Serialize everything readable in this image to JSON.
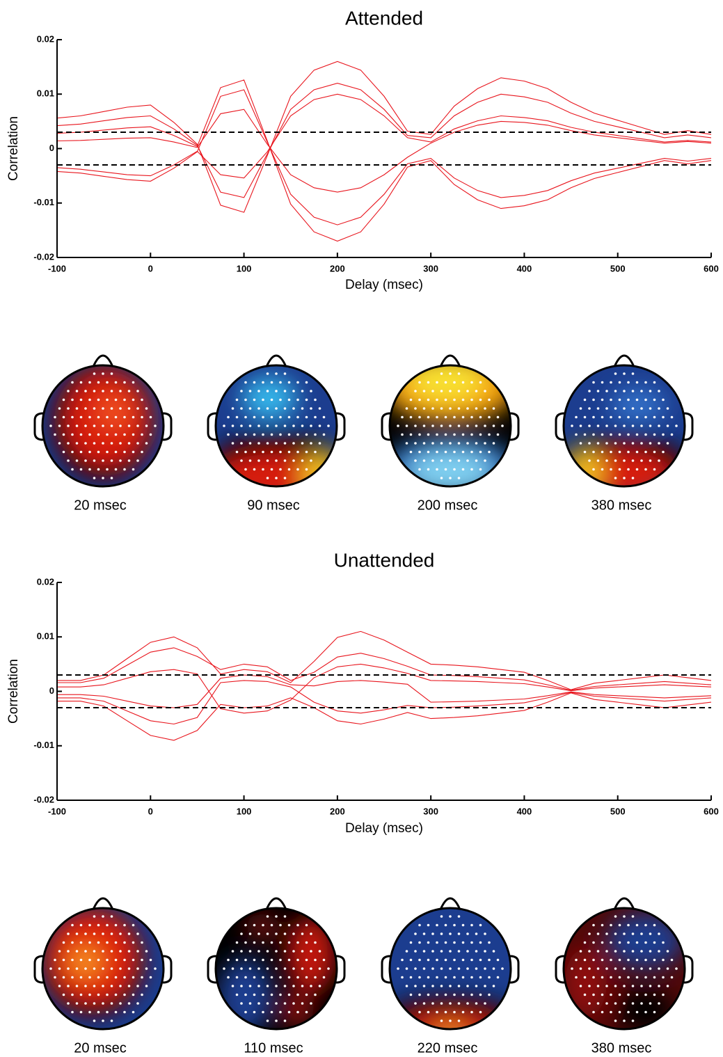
{
  "chart_data": [
    {
      "type": "line",
      "title": "Attended",
      "xlabel": "Delay (msec)",
      "ylabel": "Correlation",
      "color": "#e8141c",
      "x": [
        -100,
        -75,
        -50,
        -25,
        0,
        25,
        50,
        75,
        100,
        125,
        150,
        175,
        200,
        225,
        250,
        275,
        300,
        325,
        350,
        375,
        400,
        425,
        450,
        475,
        500,
        525,
        550,
        575,
        600
      ],
      "series": [
        {
          "values": [
            0.0056,
            0.006,
            0.0068,
            0.0076,
            0.008,
            0.0048,
            0.0008,
            -0.0104,
            -0.0117,
            -0.0013,
            0.0096,
            0.0144,
            0.016,
            0.0144,
            0.0096,
            0.0032,
            0.0026,
            0.0078,
            0.011,
            0.013,
            0.0124,
            0.011,
            0.0085,
            0.0065,
            0.0052,
            0.0039,
            0.0026,
            0.0033,
            0.0026
          ]
        },
        {
          "values": [
            0.0042,
            0.0045,
            0.0051,
            0.0057,
            0.006,
            0.0036,
            0.0006,
            -0.008,
            -0.009,
            -0.001,
            0.0072,
            0.0108,
            0.012,
            0.0108,
            0.0072,
            0.0024,
            0.002,
            0.006,
            0.0085,
            0.01,
            0.0095,
            0.0085,
            0.0065,
            0.005,
            0.004,
            0.003,
            0.002,
            0.0025,
            0.002
          ]
        },
        {
          "values": [
            0.0028,
            0.003,
            0.0034,
            0.0038,
            0.004,
            0.0024,
            0.0004,
            0.0112,
            0.0126,
            0.0014,
            -0.0102,
            -0.0153,
            -0.017,
            -0.0153,
            -0.0102,
            -0.0034,
            -0.0022,
            -0.0066,
            -0.0094,
            -0.011,
            -0.0105,
            -0.0094,
            -0.0072,
            -0.0055,
            -0.0044,
            -0.0033,
            -0.0022,
            -0.0028,
            -0.0022
          ]
        },
        {
          "values": [
            -0.0042,
            -0.0045,
            -0.0051,
            -0.0057,
            -0.006,
            -0.0036,
            -0.0006,
            0.0096,
            0.0108,
            0.0012,
            -0.0084,
            -0.0126,
            -0.014,
            -0.0126,
            -0.0084,
            -0.0028,
            -0.0018,
            -0.0054,
            -0.0077,
            -0.009,
            -0.0086,
            -0.0077,
            -0.0059,
            -0.0045,
            -0.0036,
            -0.0027,
            -0.0018,
            -0.0023,
            -0.0018
          ]
        },
        {
          "values": [
            -0.0035,
            -0.0038,
            -0.0043,
            -0.0048,
            -0.005,
            -0.003,
            -0.0005,
            -0.0048,
            -0.0054,
            -0.0006,
            0.006,
            0.009,
            0.01,
            0.009,
            0.006,
            0.002,
            0.0012,
            0.0036,
            0.0051,
            0.006,
            0.0057,
            0.0051,
            0.0039,
            0.003,
            0.0024,
            0.0018,
            0.0012,
            0.0015,
            0.0012
          ]
        },
        {
          "values": [
            0.0014,
            0.0015,
            0.0017,
            0.0019,
            0.002,
            0.0012,
            0.0002,
            0.0064,
            0.0072,
            0.0008,
            -0.0048,
            -0.0072,
            -0.008,
            -0.0072,
            -0.0048,
            -0.0016,
            0.001,
            0.003,
            0.0043,
            0.005,
            0.0048,
            0.0043,
            0.0033,
            0.0025,
            0.002,
            0.0015,
            0.001,
            0.0013,
            0.001
          ]
        }
      ],
      "hlines": [
        0.003,
        -0.003
      ],
      "xlim": [
        -100,
        600
      ],
      "xticks": [
        -100,
        0,
        100,
        200,
        300,
        400,
        500,
        600
      ],
      "ylim": [
        -0.02,
        0.02
      ],
      "yticks": [
        -0.02,
        -0.01,
        0,
        0.01,
        0.02
      ],
      "maps": [
        "20 msec",
        "90 msec",
        "200 msec",
        "380 msec"
      ]
    },
    {
      "type": "line",
      "title": "Unattended",
      "xlabel": "Delay (msec)",
      "ylabel": "Correlation",
      "color": "#e8141c",
      "x": [
        -100,
        -75,
        -50,
        -25,
        0,
        25,
        50,
        75,
        100,
        125,
        150,
        175,
        200,
        225,
        250,
        275,
        300,
        325,
        350,
        375,
        400,
        425,
        450,
        475,
        500,
        525,
        550,
        575,
        600
      ],
      "series": [
        {
          "values": [
            0.002,
            0.002,
            0.003,
            0.006,
            0.009,
            0.01,
            0.008,
            0.0032,
            0.004,
            0.0036,
            0.0016,
            0.0055,
            0.0099,
            0.011,
            0.0094,
            0.0072,
            0.005,
            0.0048,
            0.0045,
            0.004,
            0.0035,
            0.002,
            0.0003,
            0.0015,
            0.002,
            0.0025,
            0.003,
            0.0025,
            0.002
          ]
        },
        {
          "values": [
            0.0016,
            0.0016,
            0.0024,
            0.0048,
            0.0072,
            0.008,
            0.0064,
            0.004,
            0.005,
            0.0045,
            0.002,
            0.0035,
            0.0063,
            0.007,
            0.006,
            0.0046,
            0.003,
            0.0029,
            0.0027,
            0.0024,
            0.0021,
            0.0012,
            0.0002,
            0.0009,
            0.0012,
            0.0015,
            0.0018,
            0.0015,
            0.0012
          ]
        },
        {
          "values": [
            -0.0018,
            -0.0018,
            -0.0027,
            -0.0054,
            -0.0081,
            -0.009,
            -0.0072,
            -0.0024,
            -0.003,
            -0.0027,
            -0.0012,
            -0.003,
            -0.0054,
            -0.006,
            -0.0051,
            -0.0039,
            -0.005,
            -0.0048,
            -0.0045,
            -0.004,
            -0.0035,
            -0.002,
            -0.0003,
            -0.0015,
            -0.002,
            -0.0025,
            -0.003,
            -0.0025,
            -0.002
          ]
        },
        {
          "values": [
            -0.0012,
            -0.0012,
            -0.0018,
            -0.0036,
            -0.0054,
            -0.006,
            -0.0048,
            0.0016,
            0.002,
            0.0018,
            0.0008,
            -0.002,
            -0.0036,
            -0.004,
            -0.0034,
            -0.0026,
            -0.003,
            -0.0029,
            -0.0027,
            -0.0024,
            -0.0021,
            -0.0012,
            -0.0002,
            -0.0009,
            -0.0012,
            -0.0015,
            -0.0018,
            -0.0015,
            -0.0012
          ]
        },
        {
          "values": [
            0.0008,
            0.0008,
            0.0012,
            0.0024,
            0.0036,
            0.004,
            0.0032,
            -0.0032,
            -0.004,
            -0.0036,
            -0.0016,
            0.0025,
            0.0045,
            0.005,
            0.0043,
            0.0033,
            0.002,
            0.0019,
            0.0018,
            0.0016,
            0.0014,
            0.0008,
            0.0001,
            0.0006,
            0.0008,
            0.001,
            0.0012,
            0.001,
            0.0008
          ]
        },
        {
          "values": [
            -0.0006,
            -0.0006,
            -0.0009,
            -0.0018,
            -0.0027,
            -0.003,
            -0.0024,
            0.0024,
            0.003,
            0.0027,
            0.0012,
            0.001,
            0.0018,
            0.002,
            0.0017,
            0.0013,
            -0.002,
            -0.0019,
            -0.0018,
            -0.0016,
            -0.0014,
            -0.0008,
            -0.0001,
            -0.0006,
            -0.0008,
            -0.001,
            -0.0012,
            -0.001,
            -0.0008
          ]
        }
      ],
      "hlines": [
        0.003,
        -0.003
      ],
      "xlim": [
        -100,
        600
      ],
      "xticks": [
        -100,
        0,
        100,
        200,
        300,
        400,
        500,
        600
      ],
      "ylim": [
        -0.02,
        0.02
      ],
      "yticks": [
        -0.02,
        -0.01,
        0,
        0.01,
        0.02
      ],
      "maps": [
        "20 msec",
        "110 msec",
        "220 msec",
        "380 msec"
      ]
    }
  ]
}
